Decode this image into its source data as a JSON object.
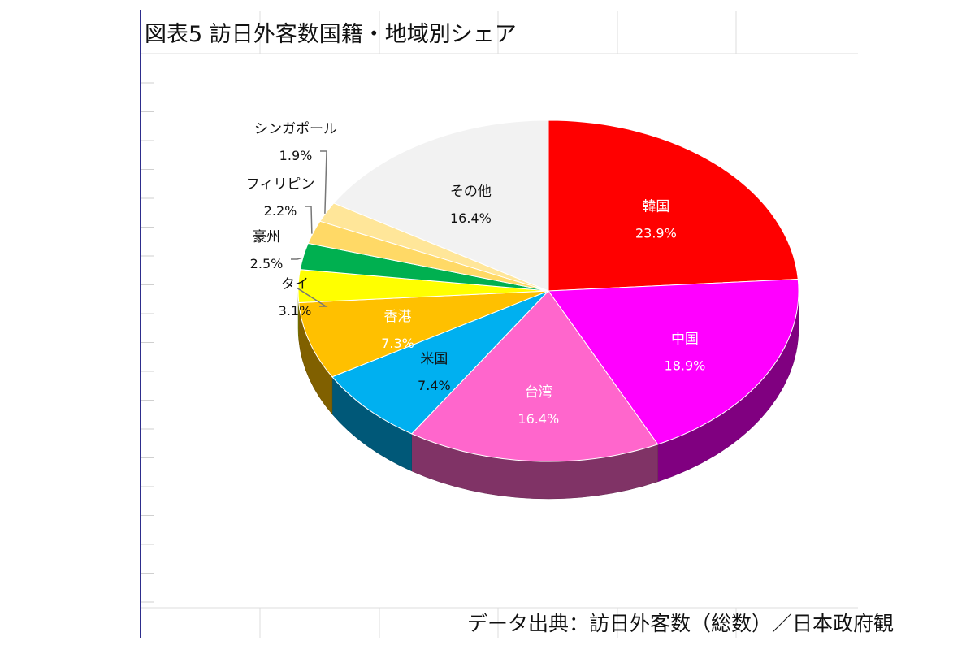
{
  "title": "図表5  訪日外客数国籍・地域別シェア",
  "source": "データ出典：訪日外客数（総数）／日本政府観",
  "chart_data": {
    "type": "pie",
    "title": "図表5  訪日外客数国籍・地域別シェア",
    "three_d": true,
    "slices": [
      {
        "label": "韓国",
        "value": 23.9,
        "display": "23.9%",
        "color": "#ff0000",
        "label_color": "#ffffff"
      },
      {
        "label": "中国",
        "value": 18.9,
        "display": "18.9%",
        "color": "#ff00ff",
        "label_color": "#ffffff"
      },
      {
        "label": "台湾",
        "value": 16.4,
        "display": "16.4%",
        "color": "#ff66cc",
        "label_color": "#ffffff"
      },
      {
        "label": "米国",
        "value": 7.4,
        "display": "7.4%",
        "color": "#00b0f0",
        "label_color": "#111111"
      },
      {
        "label": "香港",
        "value": 7.3,
        "display": "7.3%",
        "color": "#ffc000",
        "label_color": "#ffffff"
      },
      {
        "label": "タイ",
        "value": 3.1,
        "display": "3.1%",
        "color": "#ffff00",
        "label_color": "#111111"
      },
      {
        "label": "豪州",
        "value": 2.5,
        "display": "2.5%",
        "color": "#00b050",
        "label_color": "#111111"
      },
      {
        "label": "フィリピン",
        "value": 2.2,
        "display": "2.2%",
        "color": "#ffd966",
        "label_color": "#111111"
      },
      {
        "label": "シンガポール",
        "value": 1.9,
        "display": "1.9%",
        "color": "#ffe699",
        "label_color": "#111111"
      },
      {
        "label": "その他",
        "value": 16.4,
        "display": "16.4%",
        "color": "#f2f2f2",
        "label_color": "#111111"
      }
    ]
  }
}
